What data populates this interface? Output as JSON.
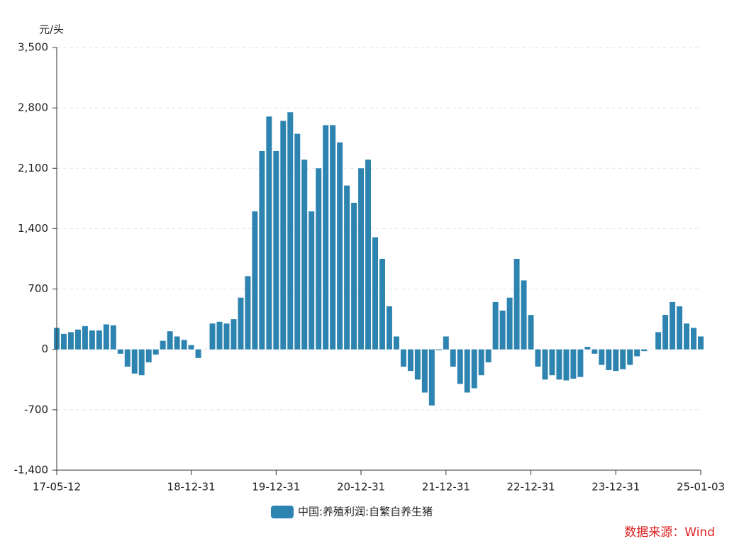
{
  "chart_data": {
    "type": "bar",
    "y_unit": "元/头",
    "source": "数据来源：Wind",
    "categories": [
      "17-05-12",
      null,
      null,
      null,
      null,
      null,
      null,
      null,
      null,
      null,
      null,
      null,
      null,
      null,
      null,
      null,
      null,
      null,
      null,
      "18-12-31",
      null,
      null,
      null,
      null,
      null,
      null,
      null,
      null,
      null,
      null,
      null,
      "19-12-31",
      null,
      null,
      null,
      null,
      null,
      null,
      null,
      null,
      null,
      null,
      null,
      "20-12-31",
      null,
      null,
      null,
      null,
      null,
      null,
      null,
      null,
      null,
      null,
      null,
      "21-12-31",
      null,
      null,
      null,
      null,
      null,
      null,
      null,
      null,
      null,
      null,
      null,
      "22-12-31",
      null,
      null,
      null,
      null,
      null,
      null,
      null,
      null,
      null,
      null,
      null,
      "23-12-31",
      null,
      null,
      null,
      null,
      null,
      null,
      null,
      null,
      null,
      null,
      null,
      "25-01-03"
    ],
    "series": [
      {
        "name": "中国:养殖利润:自繁自养生猪",
        "color": "#2e84b0",
        "values": [
          250,
          180,
          200,
          230,
          270,
          220,
          220,
          290,
          280,
          -50,
          -200,
          -280,
          -300,
          -150,
          -60,
          100,
          210,
          150,
          110,
          50,
          -100,
          0,
          300,
          320,
          300,
          350,
          600,
          850,
          1600,
          2300,
          2700,
          2300,
          2650,
          2750,
          2500,
          2200,
          1600,
          2100,
          2600,
          2600,
          2400,
          1900,
          1700,
          2100,
          2200,
          1300,
          1050,
          500,
          150,
          -200,
          -250,
          -350,
          -500,
          -650,
          -10,
          150,
          -200,
          -400,
          -500,
          -450,
          -300,
          -150,
          550,
          450,
          600,
          1050,
          800,
          400,
          -200,
          -350,
          -300,
          -350,
          -360,
          -340,
          -320,
          30,
          -50,
          -180,
          -240,
          -250,
          -230,
          -180,
          -80,
          -20,
          0,
          200,
          400,
          550,
          500,
          300,
          250,
          150
        ]
      }
    ],
    "ylim": [
      -1400,
      3500
    ],
    "yticks": [
      {
        "value": -1400,
        "label": "-1,400"
      },
      {
        "value": -700,
        "label": "-700"
      },
      0,
      {
        "value": 700,
        "label": "700"
      },
      {
        "value": 1400,
        "label": "1,400"
      },
      {
        "value": 2100,
        "label": "2,100"
      },
      {
        "value": 2800,
        "label": "2,800"
      },
      {
        "value": 3500,
        "label": "3,500"
      }
    ],
    "grid": true
  }
}
